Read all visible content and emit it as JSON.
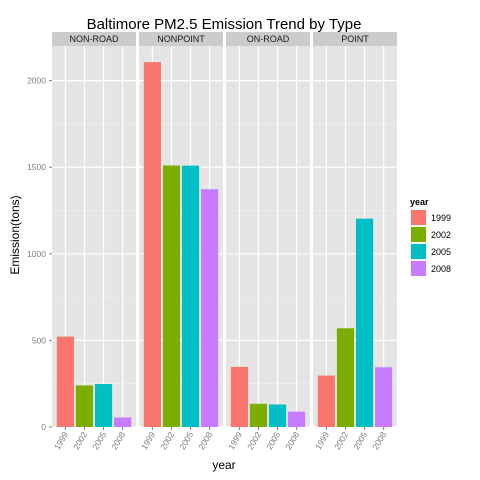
{
  "chart_data": {
    "type": "bar",
    "title": "Baltimore PM2.5 Emission Trend by Type",
    "xlabel": "year",
    "ylabel": "Emission(tons)",
    "ylim": [
      0,
      2200
    ],
    "yticks": [
      "0",
      "500",
      "1000",
      "1500",
      "2000"
    ],
    "categories": [
      "1999",
      "2002",
      "2005",
      "2008"
    ],
    "facets": [
      {
        "name": "NON-ROAD",
        "values": [
          522,
          240,
          248,
          55
        ]
      },
      {
        "name": "NONPOINT",
        "values": [
          2107,
          1510,
          1509,
          1373
        ]
      },
      {
        "name": "ON-ROAD",
        "values": [
          347,
          134,
          130,
          89
        ]
      },
      {
        "name": "POINT",
        "values": [
          297,
          570,
          1203,
          345
        ]
      }
    ],
    "legend": {
      "title": "year",
      "position": "right",
      "items": [
        {
          "label": "1999",
          "color": "#F8766D"
        },
        {
          "label": "2002",
          "color": "#7CAE00"
        },
        {
          "label": "2005",
          "color": "#00BFC4"
        },
        {
          "label": "2008",
          "color": "#C77CFF"
        }
      ]
    },
    "grid": true
  }
}
